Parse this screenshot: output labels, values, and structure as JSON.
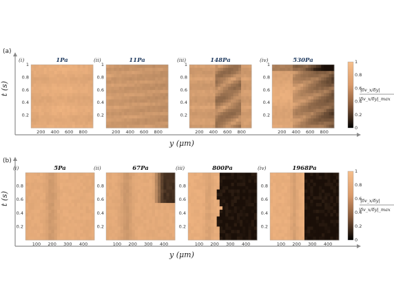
{
  "figure": {
    "row_a": {
      "label": "(a)",
      "ylabel": "t (s)",
      "xlabel": "y (μm)",
      "panels": [
        {
          "roman": "(i)",
          "title": "1Pa",
          "xticks": [
            "200",
            "400",
            "600",
            "800"
          ],
          "yticks": [
            "1",
            "0.8",
            "0.6",
            "0.4",
            "0.2"
          ],
          "variant": "uniform"
        },
        {
          "roman": "(ii)",
          "title": "11Pa",
          "xticks": [
            "200",
            "400",
            "600",
            "800"
          ],
          "yticks": [
            "1",
            "0.8",
            "0.6",
            "0.4",
            "0.2"
          ],
          "variant": "stripes"
        },
        {
          "roman": "(iii)",
          "title": "148Pa",
          "xticks": [
            "200",
            "400",
            "600",
            "800"
          ],
          "yticks": [
            "1",
            "0.8",
            "0.6",
            "0.4",
            "0.2"
          ],
          "variant": "dark-middle"
        },
        {
          "roman": "(iv)",
          "title": "530Pa",
          "xticks": [
            "200",
            "400",
            "600",
            "800"
          ],
          "yticks": [
            "1",
            "0.8",
            "0.6",
            "0.4",
            "0.2"
          ],
          "variant": "dark-right"
        }
      ],
      "colorbar": {
        "ticks": [
          "1",
          "0.8",
          "0.6",
          "0.4",
          "0.2",
          "0"
        ],
        "label_top": "|δv_x/δy|",
        "label_bottom": "|δv_x/δy|_max"
      }
    },
    "row_b": {
      "label": "(b)",
      "ylabel": "t (s)",
      "xlabel": "y (μm)",
      "panels": [
        {
          "roman": "(i)",
          "title": "5Pa",
          "xticks": [
            "100",
            "200",
            "300",
            "400"
          ],
          "yticks": [
            "0.8",
            "0.6",
            "0.4",
            "0.2"
          ],
          "variant": "band"
        },
        {
          "roman": "(ii)",
          "title": "67Pa",
          "xticks": [
            "100",
            "200",
            "300",
            "400"
          ],
          "yticks": [
            "0.8",
            "0.6",
            "0.4",
            "0.2"
          ],
          "variant": "corner"
        },
        {
          "roman": "(iii)",
          "title": "800Pa",
          "xticks": [
            "100",
            "200",
            "300",
            "400"
          ],
          "yticks": [
            "0.8",
            "0.6",
            "0.4",
            "0.2"
          ],
          "variant": "half-black"
        },
        {
          "roman": "(iv)",
          "title": "1968Pa",
          "xticks": [
            "100",
            "200",
            "300",
            "400"
          ],
          "yticks": [
            "0.8",
            "0.6",
            "0.4",
            "0.2"
          ],
          "variant": "half-black-2"
        }
      ],
      "colorbar": {
        "ticks": [
          "1",
          "0.8",
          "0.6",
          "0.4",
          "0.2",
          "0"
        ],
        "label_top": "|δv_x/δy|",
        "label_bottom": "|δv_x/δy|_max"
      }
    },
    "colors": {
      "light": "#f0b27e",
      "mid": "#c98a5c",
      "dark": "#000000",
      "axis": "#888888"
    }
  }
}
